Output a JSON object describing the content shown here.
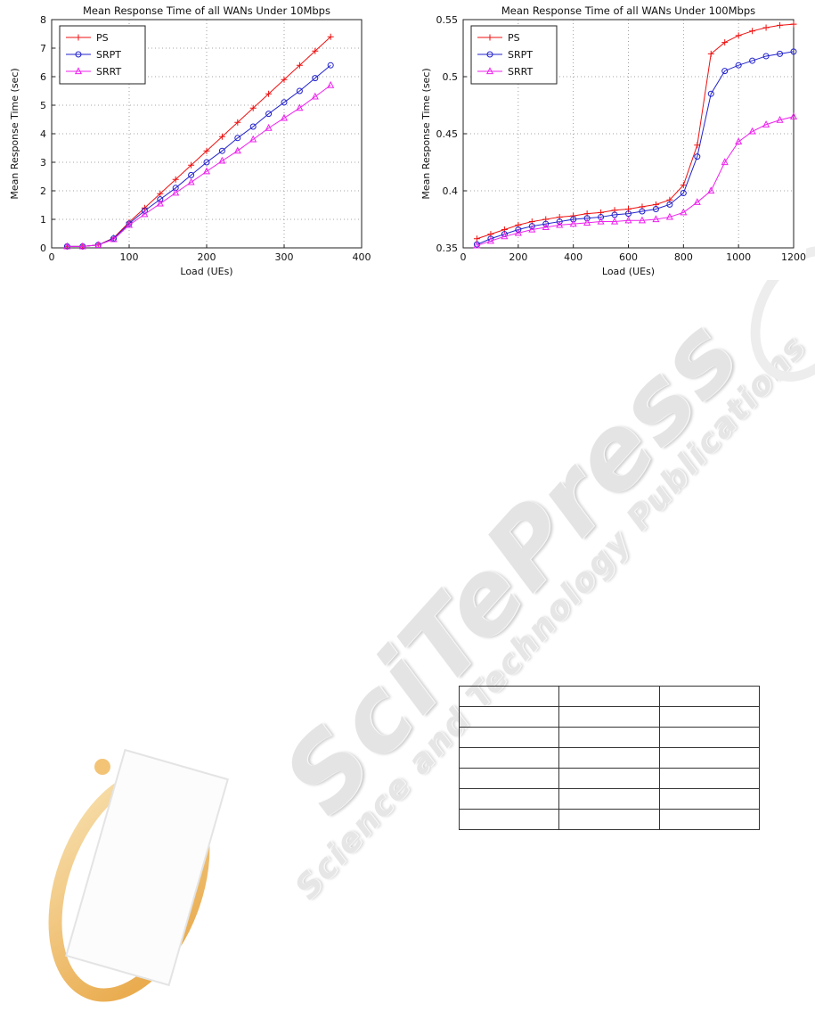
{
  "watermark": {
    "brand": "SciTePress",
    "tagline": "Science and Technology Publications"
  },
  "chart_data": [
    {
      "type": "line",
      "title": "Mean Response Time of all WANs Under 10Mbps",
      "xlabel": "Load (UEs)",
      "ylabel": "Mean Response Time (sec)",
      "xlim": [
        0,
        400
      ],
      "ylim": [
        0,
        8
      ],
      "xticks": [
        0,
        100,
        200,
        300,
        400
      ],
      "yticks": [
        0,
        1,
        2,
        3,
        4,
        5,
        6,
        7,
        8
      ],
      "xtick_labels": [
        "0",
        "100",
        "200",
        "300",
        "400"
      ],
      "ytick_labels": [
        "0",
        "1",
        "2",
        "3",
        "4",
        "5",
        "6",
        "7",
        "8"
      ],
      "grid": true,
      "legend_position": "top-left",
      "x": [
        20,
        40,
        60,
        80,
        100,
        120,
        140,
        160,
        180,
        200,
        220,
        240,
        260,
        280,
        300,
        320,
        340,
        360
      ],
      "series": [
        {
          "name": "PS",
          "color": "#ee1111",
          "marker": "plus",
          "values": [
            0.05,
            0.05,
            0.1,
            0.35,
            0.9,
            1.4,
            1.9,
            2.4,
            2.9,
            3.4,
            3.9,
            4.4,
            4.9,
            5.4,
            5.9,
            6.4,
            6.9,
            7.4
          ]
        },
        {
          "name": "SRPT",
          "color": "#2222cc",
          "marker": "circle",
          "values": [
            0.05,
            0.05,
            0.1,
            0.33,
            0.85,
            1.3,
            1.7,
            2.1,
            2.55,
            3.0,
            3.4,
            3.85,
            4.25,
            4.7,
            5.1,
            5.5,
            5.95,
            6.4
          ]
        },
        {
          "name": "SRRT",
          "color": "#ee22ee",
          "marker": "triangle",
          "values": [
            0.05,
            0.05,
            0.1,
            0.3,
            0.8,
            1.18,
            1.55,
            1.93,
            2.3,
            2.68,
            3.05,
            3.4,
            3.8,
            4.2,
            4.55,
            4.9,
            5.3,
            5.7
          ]
        }
      ]
    },
    {
      "type": "line",
      "title": "Mean Response Time of all WANs Under 100Mbps",
      "xlabel": "Load (UEs)",
      "ylabel": "Mean Response Time (sec)",
      "xlim": [
        0,
        1200
      ],
      "ylim": [
        0.35,
        0.55
      ],
      "xticks": [
        0,
        200,
        400,
        600,
        800,
        1000,
        1200
      ],
      "yticks": [
        0.35,
        0.4,
        0.45,
        0.5,
        0.55
      ],
      "xtick_labels": [
        "0",
        "200",
        "400",
        "600",
        "800",
        "1000",
        "1200"
      ],
      "ytick_labels": [
        "0.35",
        "0.4",
        "0.45",
        "0.5",
        "0.55"
      ],
      "grid": true,
      "legend_position": "top-left",
      "x": [
        50,
        100,
        150,
        200,
        250,
        300,
        350,
        400,
        450,
        500,
        550,
        600,
        650,
        700,
        750,
        800,
        850,
        900,
        950,
        1000,
        1050,
        1100,
        1150,
        1200
      ],
      "series": [
        {
          "name": "PS",
          "color": "#ee1111",
          "marker": "plus",
          "values": [
            0.358,
            0.362,
            0.366,
            0.37,
            0.373,
            0.375,
            0.377,
            0.378,
            0.38,
            0.381,
            0.383,
            0.384,
            0.386,
            0.388,
            0.392,
            0.405,
            0.44,
            0.52,
            0.53,
            0.536,
            0.54,
            0.543,
            0.545,
            0.546
          ]
        },
        {
          "name": "SRPT",
          "color": "#2222cc",
          "marker": "circle",
          "values": [
            0.353,
            0.358,
            0.362,
            0.366,
            0.369,
            0.371,
            0.373,
            0.375,
            0.376,
            0.377,
            0.379,
            0.38,
            0.382,
            0.384,
            0.388,
            0.398,
            0.43,
            0.485,
            0.505,
            0.51,
            0.514,
            0.518,
            0.52,
            0.522
          ]
        },
        {
          "name": "SRRT",
          "color": "#ee22ee",
          "marker": "triangle",
          "values": [
            0.352,
            0.356,
            0.36,
            0.363,
            0.366,
            0.368,
            0.37,
            0.371,
            0.372,
            0.373,
            0.373,
            0.374,
            0.374,
            0.375,
            0.377,
            0.381,
            0.39,
            0.4,
            0.425,
            0.443,
            0.452,
            0.458,
            0.462,
            0.465
          ]
        }
      ]
    }
  ],
  "table": {
    "rows": [
      [
        "",
        "",
        ""
      ],
      [
        "",
        "",
        ""
      ],
      [
        "",
        "",
        ""
      ],
      [
        "",
        "",
        ""
      ],
      [
        "",
        "",
        ""
      ],
      [
        "",
        "",
        ""
      ],
      [
        "",
        "",
        ""
      ]
    ]
  }
}
